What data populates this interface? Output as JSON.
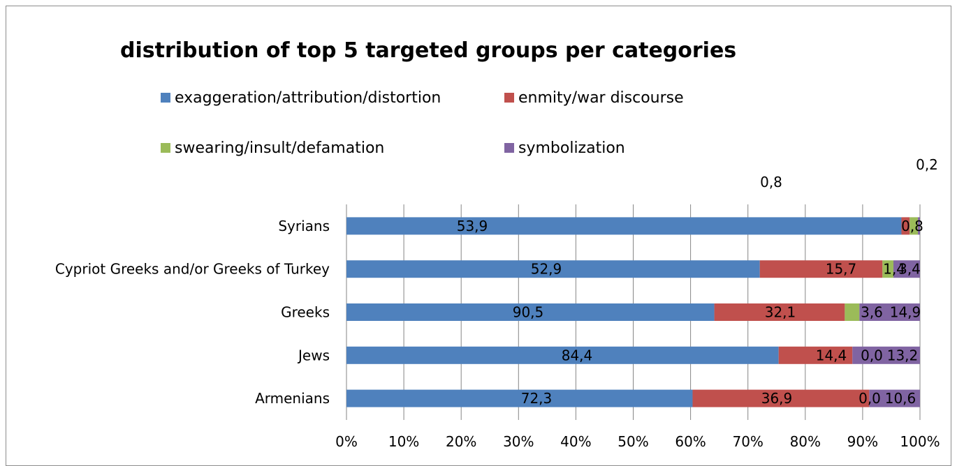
{
  "chart_data": {
    "type": "bar",
    "orientation": "horizontal",
    "stacked": "percent",
    "title": "distribution of top 5 targeted groups per categories",
    "categories": [
      "Syrians",
      "Cypriot Greeks and/or Greeks of Turkey",
      "Greeks",
      "Jews",
      "Armenians"
    ],
    "series": [
      {
        "name": "exaggeration/attribution/distortion",
        "color": "#4f81bd",
        "values": [
          53.9,
          52.9,
          90.5,
          84.4,
          72.3
        ],
        "labels": [
          "53,9",
          "52,9",
          "90,5",
          "84,4",
          "72,3"
        ]
      },
      {
        "name": "enmity/war discourse",
        "color": "#c0504d",
        "values": [
          0.8,
          15.7,
          32.1,
          14.4,
          36.9
        ],
        "labels": [
          "0,8",
          "15,7",
          "32,1",
          "14,4",
          "36,9"
        ]
      },
      {
        "name": "swearing/insult/defamation",
        "color": "#9bbb59",
        "values": [
          0.8,
          1.4,
          3.6,
          0.0,
          0.0
        ],
        "labels": [
          "0,8",
          "1,4",
          "3,6",
          "0,0",
          "0,0"
        ]
      },
      {
        "name": "symbolization",
        "color": "#8064a2",
        "values": [
          0.2,
          3.4,
          14.9,
          13.2,
          10.6
        ],
        "labels": [
          "0,2",
          "3,4",
          "14,9",
          "13,2",
          "10,6"
        ]
      }
    ],
    "x_ticks": [
      "0%",
      "10%",
      "20%",
      "30%",
      "40%",
      "50%",
      "60%",
      "70%",
      "80%",
      "90%",
      "100%"
    ],
    "xlim": [
      0,
      100
    ],
    "grid": "vertical",
    "legend": "top"
  }
}
